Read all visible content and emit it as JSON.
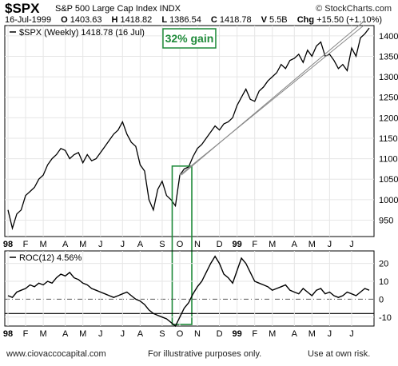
{
  "header": {
    "symbol": "$SPX",
    "name": "S&P 500 Large Cap Index INDX",
    "brand": "© StockCharts.com",
    "date": "16-Jul-1999",
    "open_label": "O",
    "open": "1403.63",
    "high_label": "H",
    "high": "1418.82",
    "low_label": "L",
    "low": "1386.54",
    "close_label": "C",
    "close": "1418.78",
    "volume_label": "V",
    "volume": "5.5B",
    "change_label": "Chg",
    "change": "+15.50 (+1.10%)"
  },
  "annotation": {
    "text": "32% gain",
    "color": "#1f8a3a"
  },
  "footer": {
    "left": "www.ciovaccocapital.com",
    "middle": "For illustrative purposes only.",
    "right": "Use at own risk."
  },
  "chart_data": [
    {
      "type": "line",
      "legend": "$SPX (Weekly) 1418.78 (16 Jul)",
      "ylim": [
        910,
        1425
      ],
      "yticks": [
        950,
        1000,
        1050,
        1100,
        1150,
        1200,
        1250,
        1300,
        1350,
        1400
      ],
      "xticks": [
        {
          "label": "98",
          "bold": true,
          "week": 0
        },
        {
          "label": "F",
          "week": 4
        },
        {
          "label": "M",
          "week": 8
        },
        {
          "label": "A",
          "week": 13
        },
        {
          "label": "M",
          "week": 17
        },
        {
          "label": "J",
          "week": 21
        },
        {
          "label": "J",
          "week": 26
        },
        {
          "label": "A",
          "week": 30
        },
        {
          "label": "S",
          "week": 35
        },
        {
          "label": "O",
          "week": 39
        },
        {
          "label": "N",
          "week": 43
        },
        {
          "label": "D",
          "week": 48
        },
        {
          "label": "99",
          "bold": true,
          "week": 52
        },
        {
          "label": "F",
          "week": 56
        },
        {
          "label": "M",
          "week": 60
        },
        {
          "label": "A",
          "week": 65
        },
        {
          "label": "M",
          "week": 69
        },
        {
          "label": "J",
          "week": 73
        },
        {
          "label": "J",
          "week": 78
        }
      ],
      "values": [
        975,
        930,
        965,
        975,
        1010,
        1020,
        1030,
        1050,
        1060,
        1085,
        1100,
        1110,
        1125,
        1120,
        1100,
        1110,
        1115,
        1090,
        1110,
        1095,
        1100,
        1115,
        1130,
        1145,
        1160,
        1170,
        1190,
        1160,
        1140,
        1130,
        1085,
        1070,
        1000,
        975,
        1025,
        1045,
        1010,
        1000,
        985,
        1060,
        1075,
        1080,
        1105,
        1125,
        1135,
        1150,
        1165,
        1180,
        1170,
        1185,
        1190,
        1200,
        1230,
        1250,
        1270,
        1245,
        1240,
        1265,
        1275,
        1290,
        1300,
        1310,
        1330,
        1320,
        1340,
        1345,
        1355,
        1335,
        1365,
        1350,
        1375,
        1385,
        1350,
        1355,
        1340,
        1320,
        1330,
        1315,
        1370,
        1350,
        1395,
        1405,
        1419
      ]
    },
    {
      "type": "line",
      "legend": "ROC(12) 4.56%",
      "ylim": [
        -15,
        27
      ],
      "yticks": [
        -10,
        0,
        10,
        20
      ],
      "reference_line": -8,
      "values": [
        2,
        1,
        4,
        5,
        6,
        8,
        7,
        9,
        8,
        10,
        9,
        12,
        14,
        13,
        15,
        12,
        11,
        9,
        8,
        6,
        5,
        4,
        3,
        2,
        1,
        2,
        3,
        4,
        2,
        0,
        -1,
        -3,
        -6,
        -8,
        -9,
        -10,
        -11,
        -13,
        -15,
        -10,
        -5,
        -2,
        3,
        7,
        10,
        15,
        20,
        24,
        20,
        14,
        12,
        9,
        16,
        23,
        20,
        15,
        10,
        9,
        8,
        7,
        5,
        6,
        7,
        8,
        5,
        4,
        3,
        6,
        4,
        2,
        5,
        6,
        3,
        4,
        2,
        1,
        2,
        4,
        3,
        2,
        4,
        6,
        5
      ]
    }
  ]
}
